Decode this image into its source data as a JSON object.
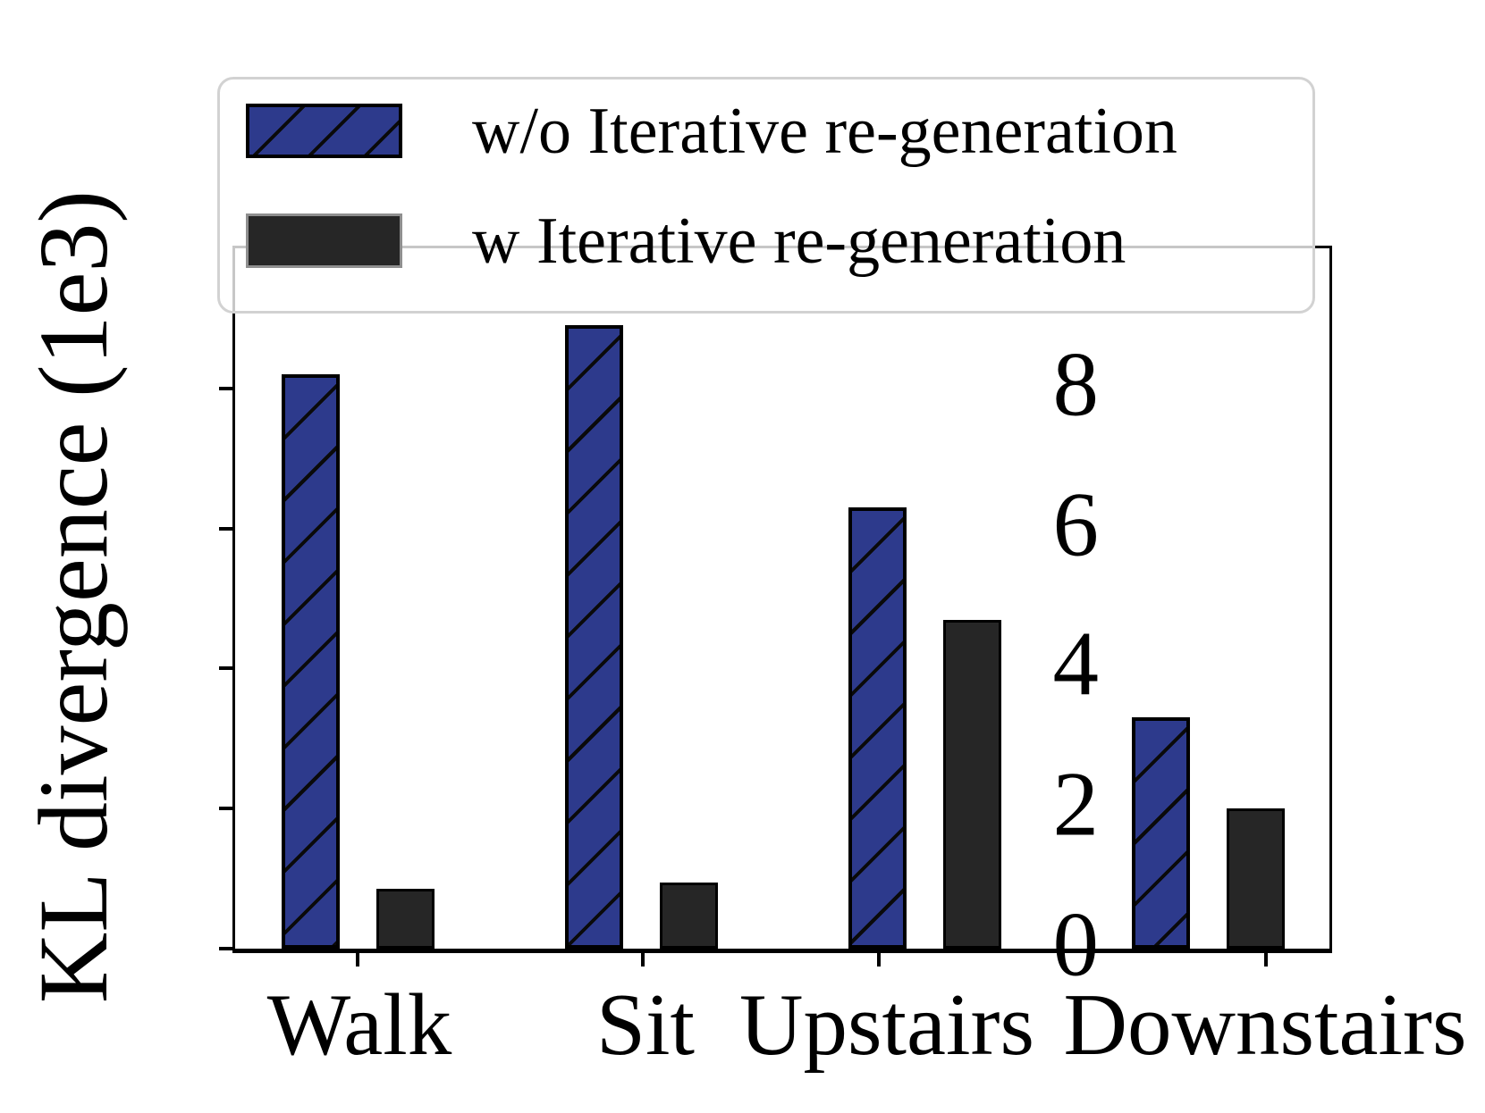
{
  "chart_data": {
    "type": "bar",
    "categories": [
      "Walk",
      "Sit",
      "Upstairs",
      "Downstairs"
    ],
    "series": [
      {
        "name": "w/o Iterative re-generation",
        "style": "hatched-blue",
        "values": [
          8.2,
          8.9,
          6.3,
          3.3
        ]
      },
      {
        "name": "w Iterative re-generation",
        "style": "solid-black",
        "values": [
          0.85,
          0.95,
          4.7,
          2.0
        ]
      }
    ],
    "title": "",
    "xlabel": "",
    "ylabel": "KL divergence (1e3)",
    "yticks": [
      0,
      2,
      4,
      6,
      8
    ],
    "ylim": [
      0,
      10
    ],
    "grid": false,
    "legend_position": "upper-left",
    "colors": {
      "series1_fill": "#2d3a8c",
      "series1_hatch": "#000000",
      "series2_fill": "#262626",
      "spine": "#000000",
      "legend_border": "#d2d2d2"
    },
    "hatch_pattern": "/"
  }
}
